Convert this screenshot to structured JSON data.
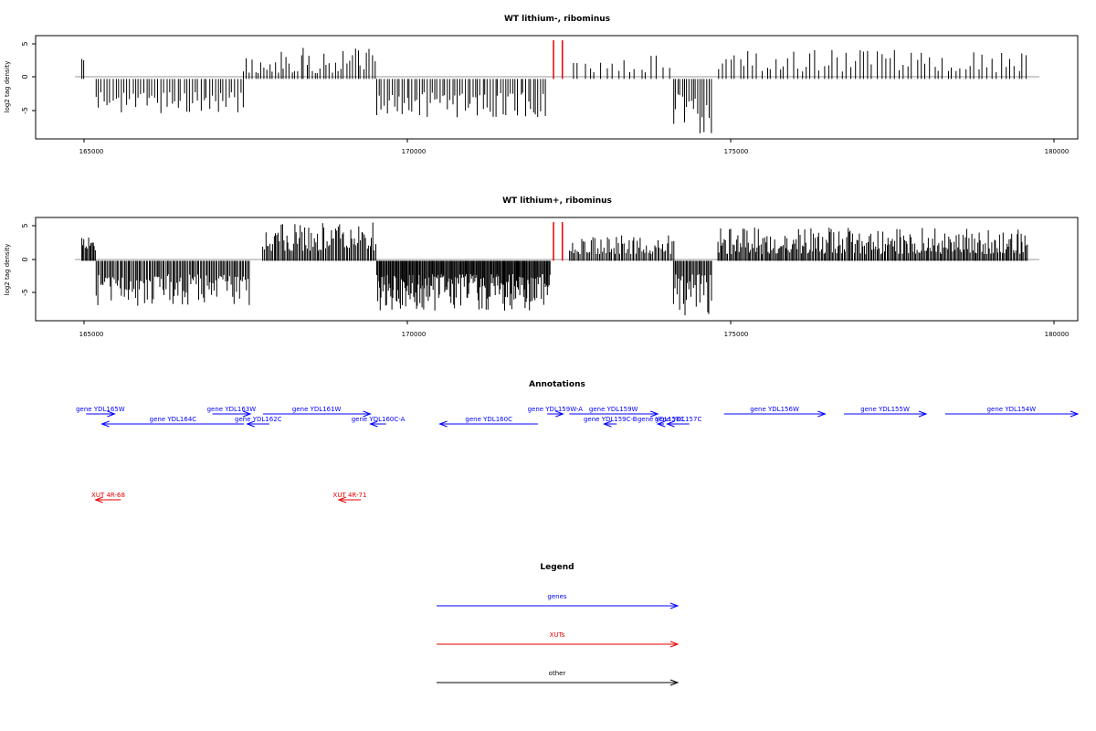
{
  "chart_data": [
    {
      "type": "bar",
      "title": "WT lithium-, ribominus",
      "xlabel": "",
      "ylabel": "log2 tag density",
      "xlim": [
        164000,
        180500
      ],
      "ylim": [
        -9,
        6.5
      ],
      "x_ticks": [
        "165000",
        "170000",
        "175000",
        "180000"
      ],
      "x_tick_values": [
        165000,
        170000,
        175000,
        180000
      ],
      "y_ticks": [
        "5",
        "0",
        "-5"
      ],
      "y_tick_values": [
        5,
        0,
        -5
      ],
      "baseline_range": [
        164700,
        179700
      ],
      "highlight_color": "#e60000",
      "highlight_bars": [
        {
          "x": 172200,
          "y": 5.8
        },
        {
          "x": 172340,
          "y": 5.8
        }
      ],
      "signal_regions": [
        {
          "start": 164730,
          "end": 164760,
          "sign": 1,
          "min": 2.5,
          "max": 3.0,
          "step": 30
        },
        {
          "start": 164950,
          "end": 167300,
          "sign": -1,
          "min": 2.0,
          "max": 5.2,
          "step": 45
        },
        {
          "start": 167300,
          "end": 169400,
          "sign": 1,
          "min": 0.8,
          "max": 4.8,
          "step": 45
        },
        {
          "start": 169400,
          "end": 172100,
          "sign": -1,
          "min": 2.0,
          "max": 5.8,
          "step": 40
        },
        {
          "start": 172500,
          "end": 174100,
          "sign": 1,
          "min": 1.0,
          "max": 3.6,
          "step": 90
        },
        {
          "start": 174100,
          "end": 174700,
          "sign": -1,
          "min": 2.0,
          "max": 8.6,
          "step": 35
        },
        {
          "start": 174800,
          "end": 179700,
          "sign": 1,
          "min": 1.0,
          "max": 4.4,
          "step": 70
        }
      ]
    },
    {
      "type": "bar",
      "title": "WT lithium+, ribominus",
      "xlabel": "",
      "ylabel": "log2 tag density",
      "xlim": [
        164000,
        180500
      ],
      "ylim": [
        -9,
        6.5
      ],
      "x_ticks": [
        "165000",
        "170000",
        "175000",
        "180000"
      ],
      "x_tick_values": [
        165000,
        170000,
        175000,
        180000
      ],
      "y_ticks": [
        "5",
        "0",
        "-5"
      ],
      "y_tick_values": [
        5,
        0,
        -5
      ],
      "baseline_range": [
        164700,
        179700
      ],
      "highlight_color": "#e60000",
      "highlight_bars": [
        {
          "x": 172200,
          "y": 5.8
        },
        {
          "x": 172340,
          "y": 5.8
        }
      ],
      "signal_regions": [
        {
          "start": 164730,
          "end": 164960,
          "sign": 1,
          "min": 1.5,
          "max": 3.5,
          "step": 18
        },
        {
          "start": 164960,
          "end": 167400,
          "sign": -1,
          "min": 2.0,
          "max": 6.8,
          "step": 22
        },
        {
          "start": 167600,
          "end": 169400,
          "sign": 1,
          "min": 1.5,
          "max": 5.8,
          "step": 22
        },
        {
          "start": 169400,
          "end": 172150,
          "sign": -1,
          "min": 2.0,
          "max": 7.6,
          "step": 14
        },
        {
          "start": 172450,
          "end": 174100,
          "sign": 1,
          "min": 1.0,
          "max": 4.0,
          "step": 25
        },
        {
          "start": 174100,
          "end": 174700,
          "sign": -1,
          "min": 2.0,
          "max": 8.2,
          "step": 20
        },
        {
          "start": 174800,
          "end": 179700,
          "sign": 1,
          "min": 1.0,
          "max": 5.0,
          "step": 20
        }
      ]
    }
  ],
  "annotations": {
    "title": "Annotations",
    "genes_color": "#0000ff",
    "xuts_color": "#e60000",
    "other_color": "#000000",
    "genes": [
      {
        "label": "gene YDL165W",
        "start": 164800,
        "end": 165250,
        "dir": "+",
        "row": 0
      },
      {
        "label": "gene YDL164C",
        "start": 165050,
        "end": 167300,
        "dir": "-",
        "row": 1
      },
      {
        "label": "gene YDL163W",
        "start": 166800,
        "end": 167400,
        "dir": "+",
        "row": 0
      },
      {
        "label": "gene YDL162C",
        "start": 167350,
        "end": 167700,
        "dir": "-",
        "row": 1
      },
      {
        "label": "gene YDL161W",
        "start": 167600,
        "end": 169300,
        "dir": "+",
        "row": 0
      },
      {
        "label": "gene YDL160C-A",
        "start": 169300,
        "end": 169550,
        "dir": "-",
        "row": 1
      },
      {
        "label": "gene YDL160C",
        "start": 170400,
        "end": 171950,
        "dir": "-",
        "row": 1
      },
      {
        "label": "gene YDL159W-A",
        "start": 172100,
        "end": 172350,
        "dir": "+",
        "row": 0
      },
      {
        "label": "gene YDL159W",
        "start": 172450,
        "end": 173850,
        "dir": "+",
        "row": 0
      },
      {
        "label": "gene YDL159C-B",
        "start": 173000,
        "end": 173200,
        "dir": "-",
        "row": 1
      },
      {
        "label": "gene YDL158C",
        "start": 173850,
        "end": 173950,
        "dir": "-",
        "row": 1
      },
      {
        "label": "gene YDL157C",
        "start": 174000,
        "end": 174350,
        "dir": "-",
        "row": 1
      },
      {
        "label": "gene YDL156W",
        "start": 174900,
        "end": 176500,
        "dir": "+",
        "row": 0
      },
      {
        "label": "gene YDL155W",
        "start": 176800,
        "end": 178100,
        "dir": "+",
        "row": 0
      },
      {
        "label": "gene YDL154W",
        "start": 178400,
        "end": 180500,
        "dir": "+",
        "row": 0
      }
    ],
    "xuts": [
      {
        "label": "XUT 4R-68",
        "start": 164950,
        "end": 165350,
        "dir": "-"
      },
      {
        "label": "XUT 4R-71",
        "start": 168800,
        "end": 169150,
        "dir": "-"
      }
    ]
  },
  "legend": {
    "title": "Legend",
    "items": [
      {
        "label": "genes",
        "color": "#0000ff"
      },
      {
        "label": "XUTs",
        "color": "#e60000"
      },
      {
        "label": "other",
        "color": "#000000"
      }
    ]
  }
}
